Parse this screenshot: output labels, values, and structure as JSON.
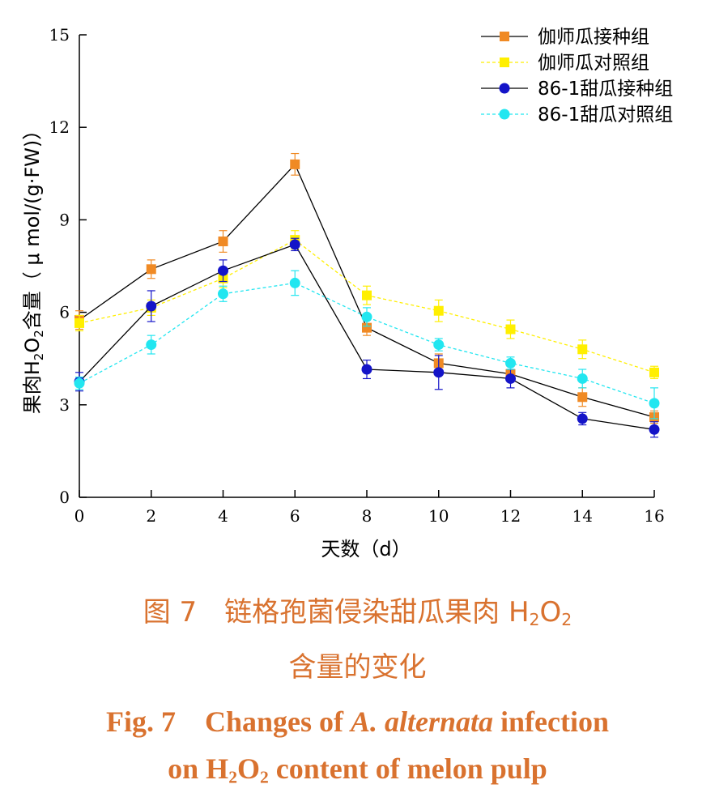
{
  "chart_data": {
    "type": "line",
    "title": "",
    "xlabel": "天数（d）",
    "ylabel_parts": [
      "果肉H",
      "2",
      "O",
      "2",
      "含量（ μ mol/(g·FW)）"
    ],
    "x": [
      0,
      2,
      4,
      6,
      8,
      10,
      12,
      14,
      16
    ],
    "xlim": [
      0,
      16
    ],
    "ylim": [
      0,
      15
    ],
    "xticks": [
      0,
      2,
      4,
      6,
      8,
      10,
      12,
      14,
      16
    ],
    "yticks": [
      0,
      3,
      6,
      9,
      12,
      15
    ],
    "grid": false,
    "legend_position": "top-right",
    "series": [
      {
        "name": "伽师瓜接种组",
        "color": "#f08a24",
        "marker": "square",
        "line_color": "#000000",
        "dash": "solid",
        "values": [
          5.75,
          7.4,
          8.3,
          10.8,
          5.5,
          4.35,
          4.0,
          3.25,
          2.6
        ],
        "errors": [
          0.3,
          0.3,
          0.35,
          0.35,
          0.25,
          0.3,
          0.25,
          0.3,
          0.2
        ]
      },
      {
        "name": "伽师瓜对照组",
        "color": "#ffef00",
        "marker": "square",
        "line_color": "#ffef00",
        "dash": "dashed",
        "values": [
          5.65,
          6.15,
          7.1,
          8.35,
          6.55,
          6.05,
          5.45,
          4.8,
          4.05
        ],
        "errors": [
          0.25,
          0.25,
          0.3,
          0.3,
          0.3,
          0.35,
          0.3,
          0.3,
          0.2
        ]
      },
      {
        "name": "86-1甜瓜接种组",
        "color": "#1414c8",
        "marker": "circle",
        "line_color": "#000000",
        "dash": "solid",
        "values": [
          3.75,
          6.2,
          7.35,
          8.2,
          4.15,
          4.05,
          3.85,
          2.55,
          2.2
        ],
        "errors": [
          0.3,
          0.5,
          0.35,
          0.2,
          0.3,
          0.55,
          0.3,
          0.2,
          0.25
        ]
      },
      {
        "name": "86-1甜瓜对照组",
        "color": "#22e6f0",
        "marker": "circle",
        "line_color": "#22e6f0",
        "dash": "dashed",
        "values": [
          3.7,
          4.95,
          6.6,
          6.95,
          5.85,
          4.95,
          4.35,
          3.85,
          3.05
        ],
        "errors": [
          0.2,
          0.3,
          0.25,
          0.4,
          0.3,
          0.2,
          0.2,
          0.3,
          0.5
        ]
      }
    ]
  },
  "caption": {
    "zh_line1_parts": [
      "图 7　链格孢菌侵染甜瓜果肉 H",
      "2",
      "O",
      "2"
    ],
    "zh_line2": "含量的变化",
    "en_line1_parts": [
      "Fig. 7　Changes of ",
      "A. alternata",
      " infection"
    ],
    "en_line2_parts": [
      "on H",
      "2",
      "O",
      "2",
      " content of melon pulp"
    ]
  }
}
